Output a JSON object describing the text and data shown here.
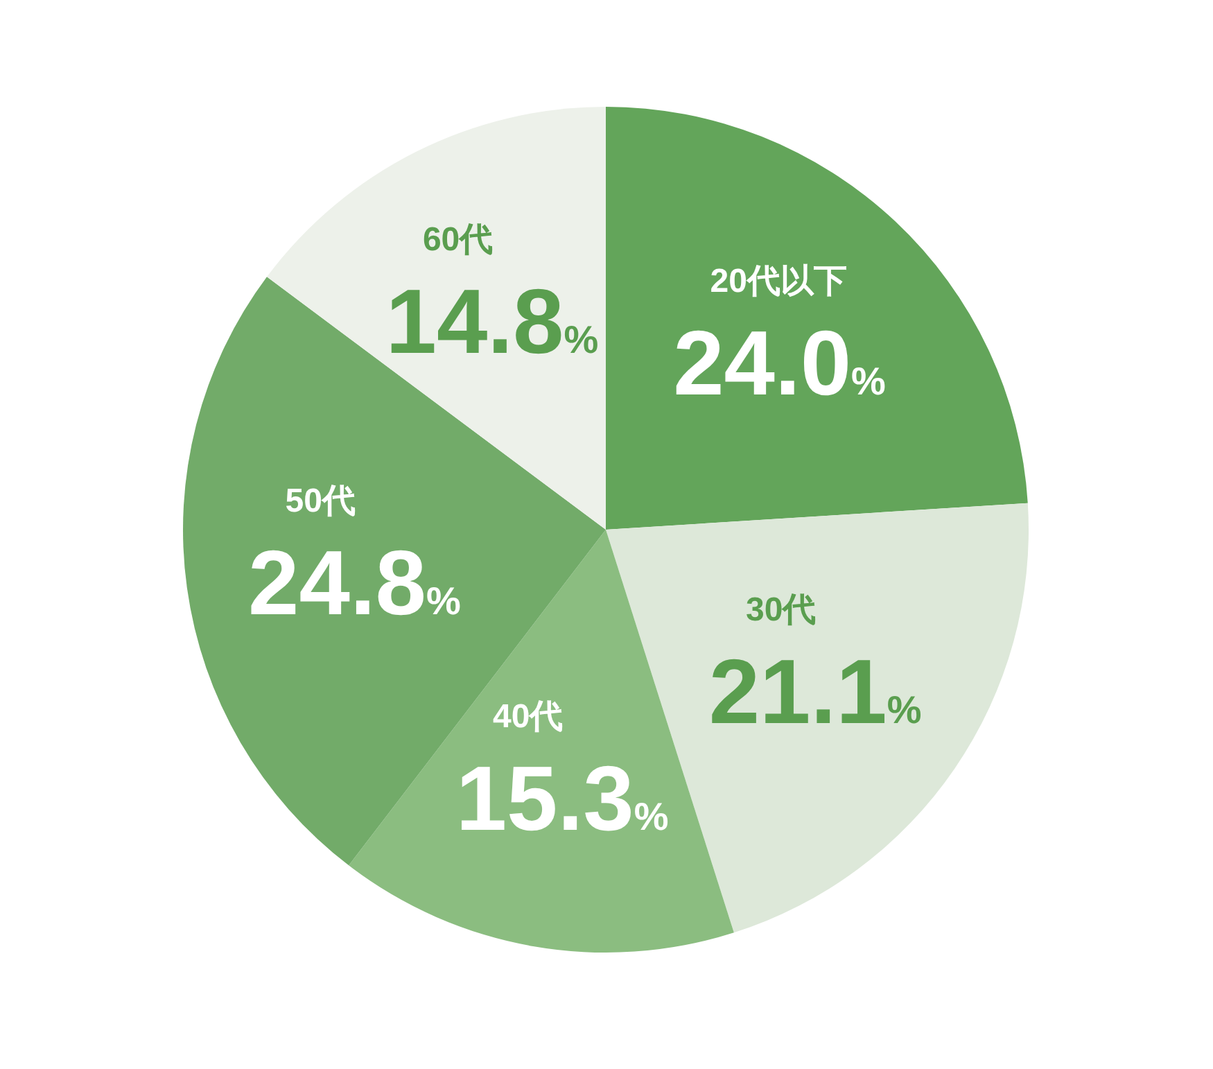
{
  "chart_data": {
    "type": "pie",
    "categories": [
      "20代以下",
      "30代",
      "40代",
      "50代",
      "60代"
    ],
    "values": [
      24.0,
      21.1,
      15.3,
      24.8,
      14.8
    ],
    "value_labels": [
      "24.0%",
      "21.1%",
      "15.3%",
      "24.8%",
      "14.8%"
    ],
    "colors": [
      "#63a55a",
      "#dde8d9",
      "#8bbd80",
      "#72ab69",
      "#edf1ea"
    ],
    "legend": false
  }
}
